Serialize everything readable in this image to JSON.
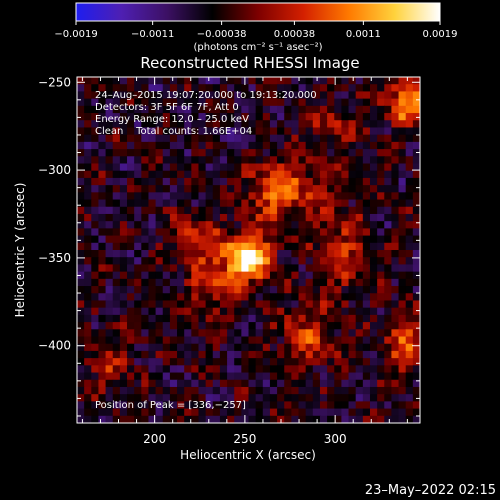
{
  "chart_data": {
    "type": "heatmap",
    "title": "Reconstructed RHESSI Image",
    "xlabel": "Heliocentric X (arcsec)",
    "ylabel": "Heliocentric Y (arcsec)",
    "xlim": [
      157,
      347
    ],
    "ylim": [
      -444,
      -247
    ],
    "xticks": [
      {
        "value": 200,
        "label": "200"
      },
      {
        "value": 250,
        "label": "250"
      },
      {
        "value": 300,
        "label": "300"
      }
    ],
    "yticks": [
      {
        "value": -250,
        "label": "−250"
      },
      {
        "value": -300,
        "label": "−300"
      },
      {
        "value": -350,
        "label": "−350"
      },
      {
        "value": -400,
        "label": "−400"
      }
    ],
    "colorbar": {
      "range": [
        -0.0019,
        0.0019
      ],
      "ticks": [
        {
          "value": -0.0019,
          "label": "−0.0019"
        },
        {
          "value": -0.0011,
          "label": "−0.0011"
        },
        {
          "value": -0.00038,
          "label": "−0.00038"
        },
        {
          "value": 0.00038,
          "label": "0.00038"
        },
        {
          "value": 0.0011,
          "label": "0.0011"
        },
        {
          "value": 0.0019,
          "label": "0.0019"
        }
      ],
      "unit_label": "(photons cm⁻² s⁻¹ asec⁻²)",
      "colors": [
        "#1e1ef0",
        "#4e1fb2",
        "#3c1064",
        "#000000",
        "#7d0000",
        "#d42000",
        "#ff7a00",
        "#ffd23c",
        "#ffffff"
      ]
    },
    "annotations": {
      "line1": "24–Aug–2015 19:07:20.000 to 19:13:20.000",
      "line2": "Detectors: 3F 5F 6F 7F, Att 0",
      "line3": "Energy Range: 12.0 – 25.0 keV",
      "line4": "Clean    Total counts: 1.66E+04",
      "peak": "Position of Peak = [336,−257]"
    },
    "sources": [
      {
        "x": 252,
        "y": -350,
        "sx": 9,
        "sy": 9,
        "amp": 1.0
      },
      {
        "x": 270,
        "y": -312,
        "sx": 14,
        "sy": 12,
        "amp": 0.55
      },
      {
        "x": 232,
        "y": -365,
        "sx": 10,
        "sy": 15,
        "amp": 0.35
      },
      {
        "x": 222,
        "y": -338,
        "sx": 9,
        "sy": 9,
        "amp": 0.35
      },
      {
        "x": 305,
        "y": -345,
        "sx": 10,
        "sy": 18,
        "amp": 0.35
      },
      {
        "x": 340,
        "y": -260,
        "sx": 8,
        "sy": 10,
        "amp": 0.65
      },
      {
        "x": 340,
        "y": -400,
        "sx": 8,
        "sy": 12,
        "amp": 0.5
      },
      {
        "x": 285,
        "y": -395,
        "sx": 12,
        "sy": 14,
        "amp": 0.35
      },
      {
        "x": 175,
        "y": -410,
        "sx": 10,
        "sy": 12,
        "amp": 0.25
      },
      {
        "x": 300,
        "y": -275,
        "sx": 12,
        "sy": 8,
        "amp": 0.3
      }
    ]
  },
  "footer": {
    "date": "23–May–2022 02:15"
  }
}
